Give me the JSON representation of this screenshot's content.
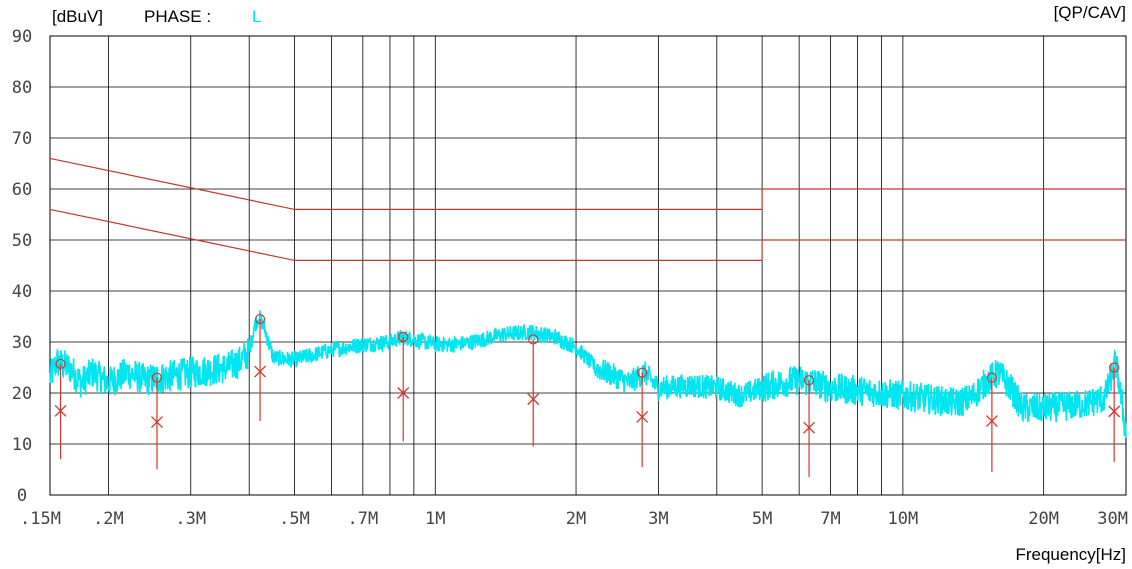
{
  "header": {
    "unit_label": "[dBuV]",
    "phase_label": "PHASE :",
    "phase_value": "L",
    "detector_label": "[QP/CAV]"
  },
  "chart_data": {
    "type": "line",
    "xlabel": "Frequency[Hz]",
    "ylabel": "[dBuV]",
    "xscale": "log",
    "xlim": [
      0.15,
      30
    ],
    "ylim": [
      0,
      90
    ],
    "grid": true,
    "y_ticks": [
      0,
      10,
      20,
      30,
      40,
      50,
      60,
      70,
      80,
      90
    ],
    "y_tick_labels": [
      "0",
      "10",
      "20",
      "30",
      "40",
      "50",
      "60",
      "70",
      "80",
      "90"
    ],
    "x_ticks": [
      0.15,
      0.2,
      0.3,
      0.5,
      0.7,
      1,
      2,
      3,
      5,
      7,
      10,
      20,
      30
    ],
    "x_tick_labels": [
      ".15M",
      ".2M",
      ".3M",
      ".5M",
      ".7M",
      "1M",
      "2M",
      "3M",
      "5M",
      "7M",
      "10M",
      "20M",
      "30M"
    ],
    "x_minor_grid": [
      0.4,
      0.6,
      0.8,
      0.9,
      4,
      6,
      8,
      9
    ],
    "colors": {
      "trace": "#00e5f0",
      "limit": "#c0392b",
      "marker": "#d9342b",
      "grid": "#000000"
    },
    "limit_lines": [
      {
        "name": "QP limit",
        "points": [
          [
            0.15,
            66
          ],
          [
            0.5,
            56
          ],
          [
            5,
            56
          ],
          [
            5,
            60
          ],
          [
            30,
            60
          ]
        ]
      },
      {
        "name": "AV limit",
        "points": [
          [
            0.15,
            56
          ],
          [
            0.5,
            46
          ],
          [
            5,
            46
          ],
          [
            5,
            50
          ],
          [
            30,
            50
          ]
        ]
      }
    ],
    "qp_markers": [
      {
        "freq": 0.158,
        "value": 25.7
      },
      {
        "freq": 0.254,
        "value": 23.0
      },
      {
        "freq": 0.422,
        "value": 34.5
      },
      {
        "freq": 0.854,
        "value": 31.0
      },
      {
        "freq": 1.62,
        "value": 30.5
      },
      {
        "freq": 2.77,
        "value": 24.0
      },
      {
        "freq": 6.3,
        "value": 22.5
      },
      {
        "freq": 15.5,
        "value": 23.0
      },
      {
        "freq": 28.3,
        "value": 25.0
      }
    ],
    "cav_markers": [
      {
        "freq": 0.158,
        "value": 16.5
      },
      {
        "freq": 0.254,
        "value": 14.3
      },
      {
        "freq": 0.422,
        "value": 24.2
      },
      {
        "freq": 0.854,
        "value": 20.0
      },
      {
        "freq": 1.62,
        "value": 18.8
      },
      {
        "freq": 2.77,
        "value": 15.3
      },
      {
        "freq": 6.3,
        "value": 13.2
      },
      {
        "freq": 15.5,
        "value": 14.5
      },
      {
        "freq": 28.3,
        "value": 16.4
      }
    ],
    "marker_line_bottoms": [
      7,
      5,
      14.5,
      10.5,
      9.5,
      5.5,
      3.5,
      4.5,
      6.5
    ],
    "series": [
      {
        "points": [
          [
            0.15,
            23
          ],
          [
            0.155,
            26
          ],
          [
            0.165,
            25
          ],
          [
            0.175,
            22
          ],
          [
            0.185,
            24
          ],
          [
            0.2,
            22
          ],
          [
            0.22,
            24
          ],
          [
            0.24,
            22.5
          ],
          [
            0.26,
            23
          ],
          [
            0.28,
            23.5
          ],
          [
            0.3,
            24
          ],
          [
            0.33,
            24.5
          ],
          [
            0.36,
            25
          ],
          [
            0.38,
            26
          ],
          [
            0.4,
            28
          ],
          [
            0.41,
            33
          ],
          [
            0.42,
            35
          ],
          [
            0.43,
            33
          ],
          [
            0.45,
            27
          ],
          [
            0.5,
            26.5
          ],
          [
            0.55,
            27.5
          ],
          [
            0.6,
            28.5
          ],
          [
            0.7,
            29.5
          ],
          [
            0.8,
            30
          ],
          [
            0.85,
            31
          ],
          [
            0.9,
            30.5
          ],
          [
            1.0,
            29.5
          ],
          [
            1.1,
            29.5
          ],
          [
            1.2,
            30
          ],
          [
            1.4,
            31.5
          ],
          [
            1.6,
            32
          ],
          [
            1.8,
            31
          ],
          [
            2.0,
            29
          ],
          [
            2.2,
            25
          ],
          [
            2.4,
            23.5
          ],
          [
            2.6,
            22
          ],
          [
            2.8,
            24
          ],
          [
            3.0,
            21
          ],
          [
            3.5,
            21.5
          ],
          [
            4.0,
            21
          ],
          [
            4.5,
            19.5
          ],
          [
            5.0,
            21
          ],
          [
            5.5,
            22
          ],
          [
            6.0,
            22.5
          ],
          [
            6.5,
            22
          ],
          [
            7.0,
            21
          ],
          [
            8.0,
            20.5
          ],
          [
            9.0,
            20
          ],
          [
            10.0,
            19.5
          ],
          [
            11.0,
            19
          ],
          [
            12.0,
            18.5
          ],
          [
            13.0,
            18
          ],
          [
            14.0,
            19
          ],
          [
            15.0,
            22
          ],
          [
            16.0,
            24
          ],
          [
            17.0,
            21
          ],
          [
            18.0,
            17
          ],
          [
            20.0,
            17
          ],
          [
            23.0,
            17.5
          ],
          [
            25.0,
            18
          ],
          [
            27.0,
            19
          ],
          [
            28.5,
            26
          ],
          [
            29.0,
            22
          ],
          [
            30.0,
            12
          ]
        ]
      }
    ]
  }
}
